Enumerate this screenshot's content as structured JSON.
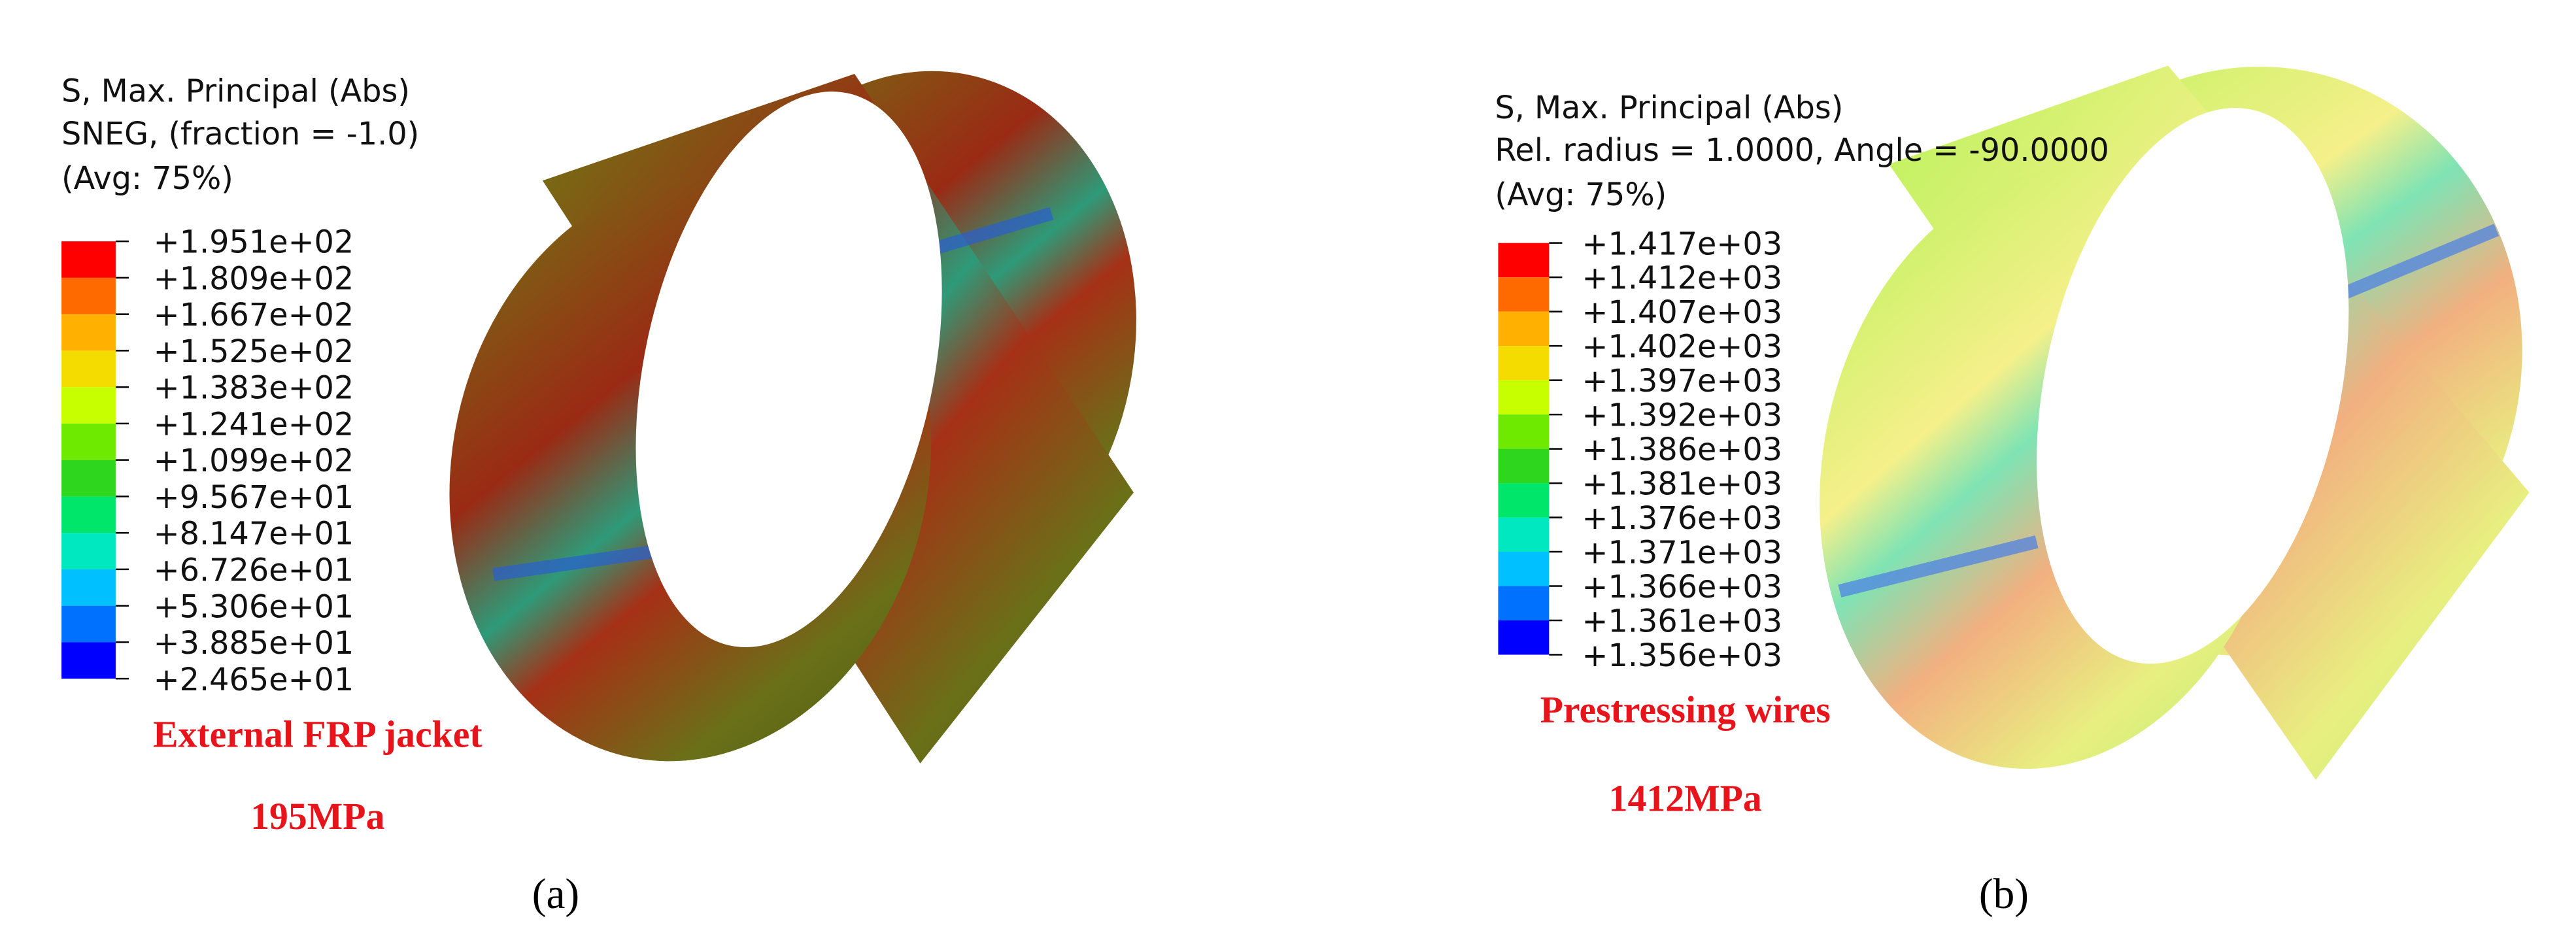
{
  "panels": [
    {
      "label": "(a)",
      "legend": {
        "title": [
          "S, Max. Principal (Abs)",
          "SNEG, (fraction = -1.0)",
          "(Avg: 75%)"
        ],
        "values": [
          "+1.951e+02",
          "+1.809e+02",
          "+1.667e+02",
          "+1.525e+02",
          "+1.383e+02",
          "+1.241e+02",
          "+1.099e+02",
          "+9.567e+01",
          "+8.147e+01",
          "+6.726e+01",
          "+5.306e+01",
          "+3.885e+01",
          "+2.465e+01"
        ]
      },
      "caption": "External FRP jacket",
      "stress": "195MPa"
    },
    {
      "label": "(b)",
      "legend": {
        "title": [
          "S, Max. Principal (Abs)",
          "Rel. radius = 1.0000, Angle = -90.0000",
          "(Avg: 75%)"
        ],
        "values": [
          "+1.417e+03",
          "+1.412e+03",
          "+1.407e+03",
          "+1.402e+03",
          "+1.397e+03",
          "+1.392e+03",
          "+1.386e+03",
          "+1.381e+03",
          "+1.376e+03",
          "+1.371e+03",
          "+1.366e+03",
          "+1.361e+03",
          "+1.356e+03"
        ]
      },
      "caption": "Prestressing wires",
      "stress": "1412MPa"
    }
  ]
}
